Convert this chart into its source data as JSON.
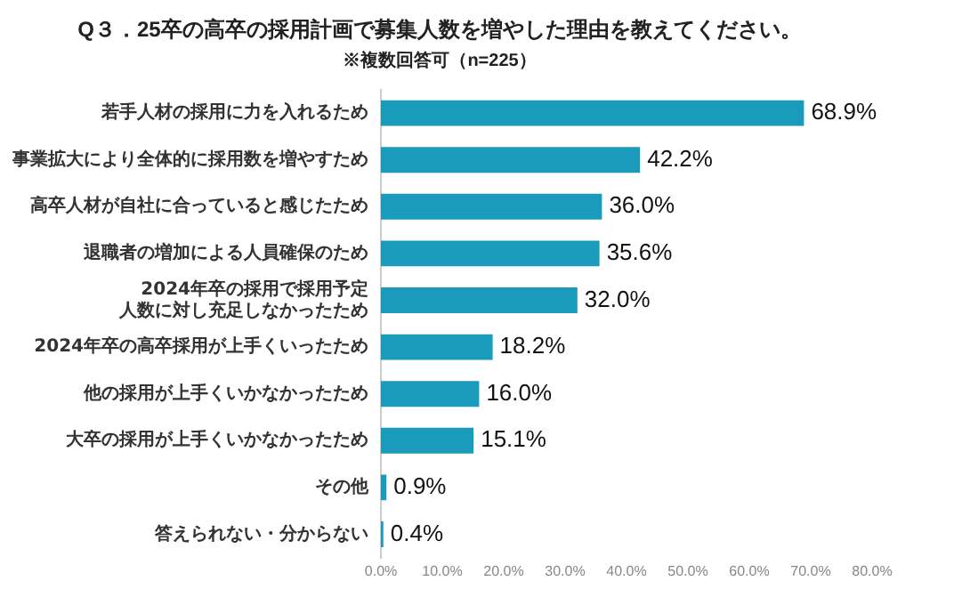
{
  "chart_data": {
    "type": "bar",
    "orientation": "horizontal",
    "title": "Q３．25卒の高卒の採用計画で募集人数を増やした理由を教えてください。",
    "subtitle": "※複数回答可（n=225）",
    "categories": [
      "若手人材の採用に力を入れるため",
      "事業拡大により全体的に採用数を増やすため",
      "高卒人材が自社に合っていると感じたため",
      "退職者の増加による人員確保のため",
      "2024年卒の採用で採用予定人数に対し充足しなかったため",
      "2024年卒の高卒採用が上手くいったため",
      "他の採用が上手くいかなかったため",
      "大卒の採用が上手くいかなかったため",
      "その他",
      "答えられない・分からない"
    ],
    "values": [
      68.9,
      42.2,
      36.0,
      35.6,
      32.0,
      18.2,
      16.0,
      15.1,
      0.9,
      0.4
    ],
    "value_labels": [
      "68.9%",
      "42.2%",
      "36.0%",
      "35.6%",
      "32.0%",
      "18.2%",
      "16.0%",
      "15.1%",
      "0.9%",
      "0.4%"
    ],
    "color": "#1a9bbb",
    "xlim": [
      0,
      80
    ],
    "xticks": [
      {
        "value": 0,
        "label": "0.0%"
      },
      {
        "value": 10,
        "label": "10.0%"
      },
      {
        "value": 20,
        "label": "20.0%"
      },
      {
        "value": 30,
        "label": "30.0%"
      },
      {
        "value": 40,
        "label": "40.0%"
      },
      {
        "value": 50,
        "label": "50.0%"
      },
      {
        "value": 60,
        "label": "60.0%"
      },
      {
        "value": 70,
        "label": "70.0%"
      },
      {
        "value": 80,
        "label": "80.0%"
      }
    ]
  }
}
